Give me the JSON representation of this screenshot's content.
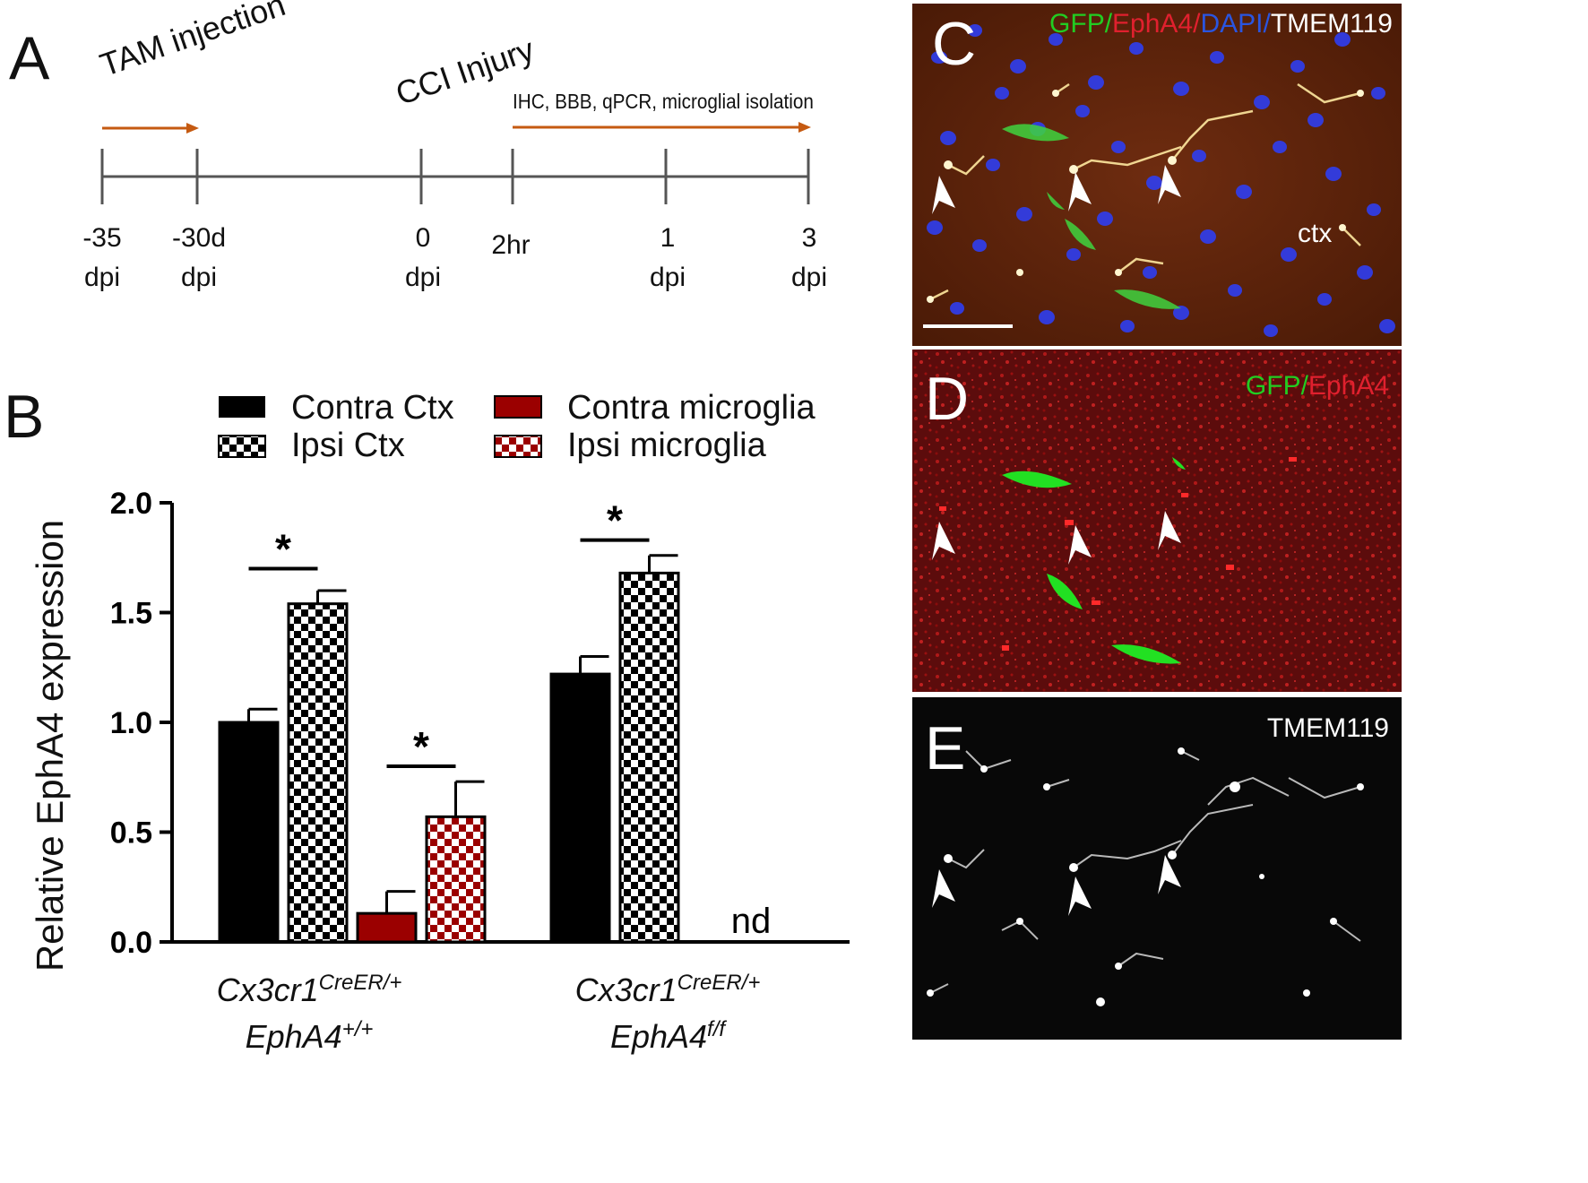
{
  "panel_a": {
    "label": "A",
    "tam_label": "TAM injection",
    "cci_label": "CCI Injury",
    "assays_label": "IHC, BBB, qPCR, microglial isolation",
    "ticks": [
      {
        "top": "-35",
        "bottom": "dpi"
      },
      {
        "top": "-30d",
        "bottom": "dpi"
      },
      {
        "top": "0",
        "bottom": "dpi"
      },
      {
        "top": "2hr",
        "bottom": ""
      },
      {
        "top": "1",
        "bottom": "dpi"
      },
      {
        "top": "3",
        "bottom": "dpi"
      }
    ],
    "arrow_color": "#c55a11"
  },
  "panel_b": {
    "label": "B",
    "legend": [
      {
        "label": "Contra Ctx",
        "fill": "solid",
        "color": "#000000"
      },
      {
        "label": "Ipsi Ctx",
        "fill": "checker",
        "color": "#000000"
      },
      {
        "label": "Contra microglia",
        "fill": "solid",
        "color": "#9b0000"
      },
      {
        "label": "Ipsi microglia",
        "fill": "checker",
        "color": "#9b0000"
      }
    ],
    "nd_label": "nd",
    "significance": "*"
  },
  "chart_data": {
    "type": "bar",
    "ylabel": "Relative EphA4 expression",
    "ylim": [
      0,
      2.0
    ],
    "yticks": [
      "0.0",
      "0.5",
      "1.0",
      "1.5",
      "2.0"
    ],
    "groups": [
      {
        "base": "Cx3cr1",
        "sup1": "CreER/+",
        "line2": "EphA4",
        "sup2": "+/+"
      },
      {
        "base": "Cx3cr1",
        "sup1": "CreER/+",
        "line2": "EphA4",
        "sup2": "f/f"
      }
    ],
    "series": [
      {
        "name": "Contra Ctx",
        "values": [
          1.0,
          1.22
        ],
        "errors": [
          0.06,
          0.08
        ]
      },
      {
        "name": "Ipsi Ctx",
        "values": [
          1.54,
          1.68
        ],
        "errors": [
          0.06,
          0.08
        ]
      },
      {
        "name": "Contra microglia",
        "values": [
          0.13,
          null
        ],
        "errors": [
          0.1,
          null
        ]
      },
      {
        "name": "Ipsi microglia",
        "values": [
          0.57,
          null
        ],
        "errors": [
          0.16,
          null
        ]
      }
    ]
  },
  "micrographs": [
    {
      "letter": "C",
      "channels": [
        {
          "text": "GFP",
          "color": "#22cc22"
        },
        {
          "text": "/",
          "color": "#22cc22"
        },
        {
          "text": "EphA4",
          "color": "#e0202e"
        },
        {
          "text": "/",
          "color": "#e0202e"
        },
        {
          "text": "DAPI",
          "color": "#2a55e0"
        },
        {
          "text": "/",
          "color": "#2a55e0"
        },
        {
          "text": "TMEM119",
          "color": "#ffffff"
        }
      ],
      "region": "ctx"
    },
    {
      "letter": "D",
      "channels": [
        {
          "text": "GFP",
          "color": "#22cc22"
        },
        {
          "text": "/",
          "color": "#22cc22"
        },
        {
          "text": "EphA4",
          "color": "#e0202e"
        }
      ],
      "region": ""
    },
    {
      "letter": "E",
      "channels": [
        {
          "text": "TMEM119",
          "color": "#ffffff"
        }
      ],
      "region": ""
    }
  ]
}
